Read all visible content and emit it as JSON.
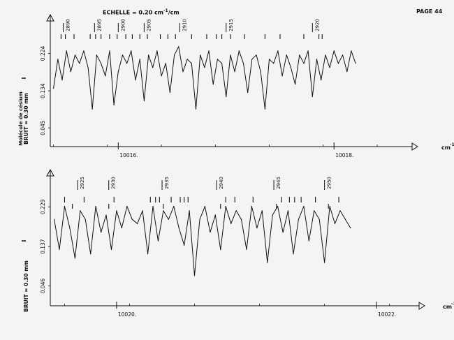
{
  "header": {
    "scale_prefix": "ECHELLE = 0.20 cm",
    "scale_exp": "-1",
    "scale_suffix": "/cm",
    "page_label": "PAGE 44"
  },
  "chart_data": [
    {
      "type": "line",
      "title": "",
      "xlabel": "cm",
      "xlabel_exp": "-1",
      "y_label_main": "BRUIT = 0.30 mm",
      "y_label_sub": "Molécule de césium",
      "y_label_i": "I",
      "xlim": [
        10015.37,
        10018.4
      ],
      "ylim": [
        0.0,
        0.26
      ],
      "y_ticks": [
        0.045,
        0.134,
        0.224
      ],
      "y_tick_labels": [
        "0.045",
        "0.134",
        "0.224"
      ],
      "x_ticks": [
        10016.0,
        10018.0
      ],
      "x_tick_labels": [
        "10016.",
        "10018."
      ],
      "line_ticks": [
        {
          "x": 10015.49,
          "label": "2890"
        },
        {
          "x": 10015.78,
          "label": "2895"
        },
        {
          "x": 10016.0,
          "label": "2900"
        },
        {
          "x": 10016.24,
          "label": "2905"
        },
        {
          "x": 10016.57,
          "label": "2910"
        },
        {
          "x": 10017.0,
          "label": "2915"
        },
        {
          "x": 10017.8,
          "label": "2920"
        }
      ],
      "line_marks_upper": [
        10015.47,
        10015.51,
        10015.59,
        10015.74,
        10015.79,
        10015.84,
        10015.92,
        10015.99,
        10016.07,
        10016.13,
        10016.2,
        10016.27,
        10016.39,
        10016.46,
        10016.53,
        10016.68,
        10016.82,
        10016.91,
        10016.96,
        10017.04,
        10017.17,
        10017.36,
        10017.5,
        10017.72,
        10017.86,
        10017.89
      ],
      "line_marks_lower": [],
      "series": [
        {
          "x": [
            10015.4,
            10015.44,
            10015.48,
            10015.52,
            10015.56,
            10015.6,
            10015.64,
            10015.68,
            10015.72,
            10015.76,
            10015.8,
            10015.84,
            10015.88,
            10015.92,
            10015.96,
            10016.0,
            10016.04,
            10016.08,
            10016.12,
            10016.16,
            10016.2,
            10016.24,
            10016.28,
            10016.32,
            10016.36,
            10016.4,
            10016.44,
            10016.48,
            10016.52,
            10016.56,
            10016.6,
            10016.64,
            10016.68,
            10016.72,
            10016.76,
            10016.8,
            10016.84,
            10016.88,
            10016.92,
            10016.96,
            10017.0,
            10017.04,
            10017.08,
            10017.12,
            10017.16,
            10017.2,
            10017.24,
            10017.28,
            10017.32,
            10017.36,
            10017.4,
            10017.44,
            10017.48,
            10017.52,
            10017.56,
            10017.6,
            10017.64,
            10017.68,
            10017.72,
            10017.76,
            10017.8,
            10017.84,
            10017.88,
            10017.92,
            10017.96,
            10018.0,
            10018.04,
            10018.08,
            10018.12,
            10018.16,
            10018.2
          ],
          "y": [
            0.14,
            0.21,
            0.16,
            0.23,
            0.18,
            0.22,
            0.2,
            0.23,
            0.19,
            0.09,
            0.22,
            0.2,
            0.17,
            0.23,
            0.1,
            0.18,
            0.22,
            0.2,
            0.23,
            0.16,
            0.21,
            0.11,
            0.22,
            0.19,
            0.23,
            0.17,
            0.2,
            0.13,
            0.22,
            0.24,
            0.18,
            0.21,
            0.2,
            0.09,
            0.22,
            0.19,
            0.23,
            0.15,
            0.21,
            0.2,
            0.12,
            0.22,
            0.18,
            0.23,
            0.2,
            0.13,
            0.21,
            0.22,
            0.18,
            0.09,
            0.21,
            0.2,
            0.23,
            0.17,
            0.22,
            0.19,
            0.15,
            0.22,
            0.2,
            0.23,
            0.12,
            0.21,
            0.16,
            0.22,
            0.19,
            0.23,
            0.2,
            0.22,
            0.18,
            0.23,
            0.2
          ]
        }
      ]
    },
    {
      "type": "line",
      "title": "",
      "xlabel": "cm",
      "xlabel_exp": "-1",
      "y_label_main": "BRUIT = 0.30 mm",
      "y_label_sub": "",
      "y_label_i": "I",
      "xlim": [
        10019.49,
        10022.22
      ],
      "ylim": [
        0.0,
        0.26
      ],
      "y_ticks": [
        0.046,
        0.137,
        0.229
      ],
      "y_tick_labels": [
        "0.046",
        "0.137",
        "0.229"
      ],
      "x_ticks": [
        10020.0,
        10022.0
      ],
      "x_tick_labels": [
        "10020.",
        "10022."
      ],
      "line_ticks": [
        {
          "x": 10019.7,
          "label": "2925"
        },
        {
          "x": 10019.94,
          "label": "2930"
        },
        {
          "x": 10020.35,
          "label": "2935"
        },
        {
          "x": 10020.77,
          "label": "2940"
        },
        {
          "x": 10021.21,
          "label": "2945"
        },
        {
          "x": 10021.6,
          "label": "2950"
        }
      ],
      "line_marks_upper": [
        10019.6,
        10019.75,
        10019.98,
        10020.26,
        10020.3,
        10020.33,
        10020.42,
        10020.49,
        10020.52,
        10020.55,
        10020.84,
        10020.91,
        10021.05,
        10021.27,
        10021.33,
        10021.37,
        10021.42,
        10021.53,
        10021.71
      ],
      "line_marks_lower": [
        10019.66,
        10019.94,
        10020.36,
        10020.8,
        10021.23,
        10021.63
      ],
      "series": [
        {
          "x": [
            10019.52,
            10019.56,
            10019.6,
            10019.64,
            10019.68,
            10019.72,
            10019.76,
            10019.8,
            10019.84,
            10019.88,
            10019.92,
            10019.96,
            10020.0,
            10020.04,
            10020.08,
            10020.12,
            10020.16,
            10020.2,
            10020.24,
            10020.28,
            10020.32,
            10020.36,
            10020.4,
            10020.44,
            10020.48,
            10020.52,
            10020.56,
            10020.6,
            10020.64,
            10020.68,
            10020.72,
            10020.76,
            10020.8,
            10020.84,
            10020.88,
            10020.92,
            10020.96,
            10021.0,
            10021.04,
            10021.08,
            10021.12,
            10021.16,
            10021.2,
            10021.24,
            10021.28,
            10021.32,
            10021.36,
            10021.4,
            10021.44,
            10021.48,
            10021.52,
            10021.56,
            10021.6,
            10021.64,
            10021.68,
            10021.72,
            10021.76,
            10021.8
          ],
          "y": [
            0.2,
            0.13,
            0.23,
            0.18,
            0.11,
            0.22,
            0.2,
            0.12,
            0.23,
            0.17,
            0.21,
            0.13,
            0.22,
            0.18,
            0.23,
            0.2,
            0.19,
            0.22,
            0.12,
            0.23,
            0.15,
            0.22,
            0.2,
            0.23,
            0.18,
            0.14,
            0.22,
            0.07,
            0.2,
            0.23,
            0.17,
            0.21,
            0.13,
            0.23,
            0.19,
            0.22,
            0.2,
            0.13,
            0.23,
            0.18,
            0.22,
            0.1,
            0.21,
            0.23,
            0.17,
            0.22,
            0.12,
            0.2,
            0.23,
            0.15,
            0.22,
            0.2,
            0.1,
            0.23,
            0.19,
            0.22,
            0.2,
            0.18
          ]
        }
      ]
    }
  ]
}
